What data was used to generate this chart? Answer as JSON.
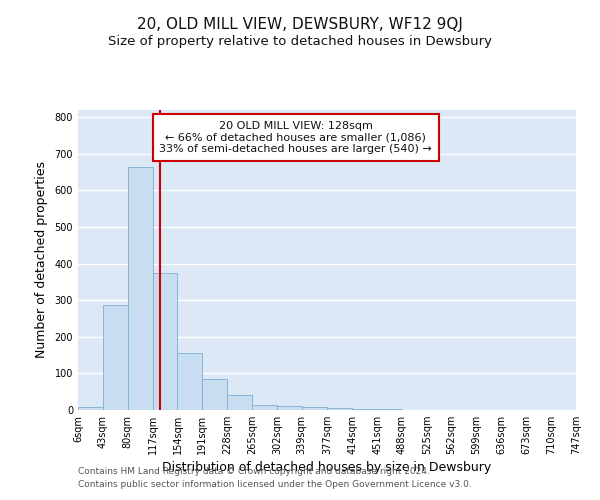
{
  "title": "20, OLD MILL VIEW, DEWSBURY, WF12 9QJ",
  "subtitle": "Size of property relative to detached houses in Dewsbury",
  "xlabel": "Distribution of detached houses by size in Dewsbury",
  "ylabel": "Number of detached properties",
  "bar_values": [
    8,
    288,
    665,
    375,
    155,
    85,
    40,
    13,
    10,
    8,
    6,
    3,
    2,
    1,
    0,
    0,
    0,
    0,
    0,
    0
  ],
  "bin_edges": [
    6,
    43,
    80,
    117,
    154,
    191,
    228,
    265,
    302,
    339,
    377,
    414,
    451,
    488,
    525,
    562,
    599,
    636,
    673,
    710,
    747
  ],
  "tick_labels": [
    "6sqm",
    "43sqm",
    "80sqm",
    "117sqm",
    "154sqm",
    "191sqm",
    "228sqm",
    "265sqm",
    "302sqm",
    "339sqm",
    "377sqm",
    "414sqm",
    "451sqm",
    "488sqm",
    "525sqm",
    "562sqm",
    "599sqm",
    "636sqm",
    "673sqm",
    "710sqm",
    "747sqm"
  ],
  "property_line_x": 128,
  "bar_color": "#c9ddf0",
  "bar_edge_color": "#7aafd4",
  "line_color": "#cc0000",
  "ylim": [
    0,
    820
  ],
  "yticks": [
    0,
    100,
    200,
    300,
    400,
    500,
    600,
    700,
    800
  ],
  "annotation_title": "20 OLD MILL VIEW: 128sqm",
  "annotation_line1": "← 66% of detached houses are smaller (1,086)",
  "annotation_line2": "33% of semi-detached houses are larger (540) →",
  "annotation_box_color": "#ffffff",
  "annotation_box_edge_color": "#cc0000",
  "footer_line1": "Contains HM Land Registry data © Crown copyright and database right 2024.",
  "footer_line2": "Contains public sector information licensed under the Open Government Licence v3.0.",
  "fig_bg_color": "#ffffff",
  "plot_bg_color": "#dce8f5",
  "grid_color": "#ffffff",
  "title_fontsize": 11,
  "subtitle_fontsize": 9.5,
  "axis_label_fontsize": 9,
  "tick_fontsize": 7,
  "footer_fontsize": 6.5,
  "annotation_fontsize": 8
}
